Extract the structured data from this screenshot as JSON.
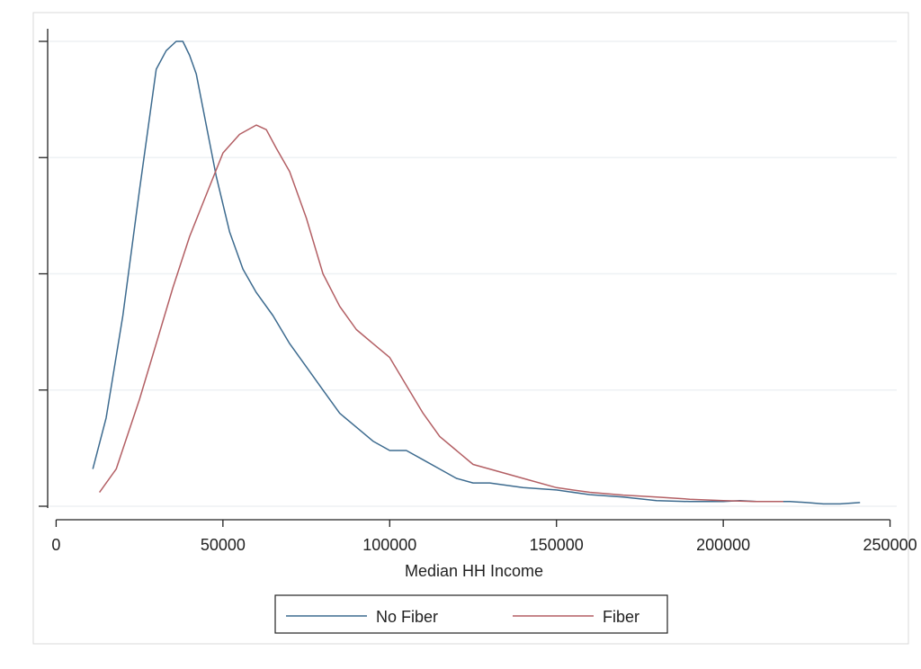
{
  "chart_data": {
    "type": "line",
    "title": "",
    "xlabel": "Median HH Income",
    "ylabel": "",
    "xlim": [
      -2000,
      252000
    ],
    "ylim": [
      0,
      1
    ],
    "x_ticks": [
      0,
      50000,
      100000,
      150000,
      200000,
      250000
    ],
    "x_tick_labels": [
      "0",
      "50000",
      "100000",
      "150000",
      "200000",
      "250000"
    ],
    "y_ticks": [
      0.0,
      0.25,
      0.5,
      0.75,
      1.0
    ],
    "y_tick_labels": [
      "",
      "",
      "",
      "",
      ""
    ],
    "grid": true,
    "legend_position": "bottom",
    "series": [
      {
        "name": "No Fiber",
        "color": "#3d6b8f",
        "x": [
          11000,
          15000,
          20000,
          25000,
          30000,
          33000,
          36000,
          38000,
          40000,
          42000,
          45000,
          48000,
          52000,
          56000,
          60000,
          65000,
          70000,
          75000,
          80000,
          85000,
          90000,
          95000,
          100000,
          105000,
          110000,
          115000,
          120000,
          125000,
          130000,
          140000,
          150000,
          160000,
          170000,
          180000,
          190000,
          200000,
          205000,
          210000,
          215000,
          220000,
          225000,
          230000,
          235000,
          241000
        ],
        "y": [
          0.08,
          0.19,
          0.41,
          0.68,
          0.94,
          0.98,
          1.0,
          1.0,
          0.97,
          0.93,
          0.82,
          0.71,
          0.59,
          0.51,
          0.46,
          0.41,
          0.35,
          0.3,
          0.25,
          0.2,
          0.17,
          0.14,
          0.12,
          0.12,
          0.1,
          0.08,
          0.06,
          0.05,
          0.05,
          0.04,
          0.035,
          0.025,
          0.02,
          0.012,
          0.01,
          0.01,
          0.012,
          0.01,
          0.01,
          0.01,
          0.008,
          0.005,
          0.005,
          0.008
        ]
      },
      {
        "name": "Fiber",
        "color": "#b35f64",
        "x": [
          13000,
          18000,
          25000,
          30000,
          35000,
          40000,
          45000,
          50000,
          55000,
          60000,
          63000,
          66000,
          70000,
          75000,
          80000,
          85000,
          90000,
          95000,
          100000,
          105000,
          110000,
          115000,
          120000,
          125000,
          130000,
          140000,
          150000,
          160000,
          170000,
          180000,
          190000,
          200000,
          210000,
          218000
        ],
        "y": [
          0.03,
          0.08,
          0.23,
          0.35,
          0.47,
          0.58,
          0.67,
          0.76,
          0.8,
          0.82,
          0.81,
          0.77,
          0.72,
          0.62,
          0.5,
          0.43,
          0.38,
          0.35,
          0.32,
          0.26,
          0.2,
          0.15,
          0.12,
          0.09,
          0.08,
          0.06,
          0.04,
          0.03,
          0.024,
          0.02,
          0.015,
          0.012,
          0.01,
          0.01
        ]
      }
    ]
  }
}
